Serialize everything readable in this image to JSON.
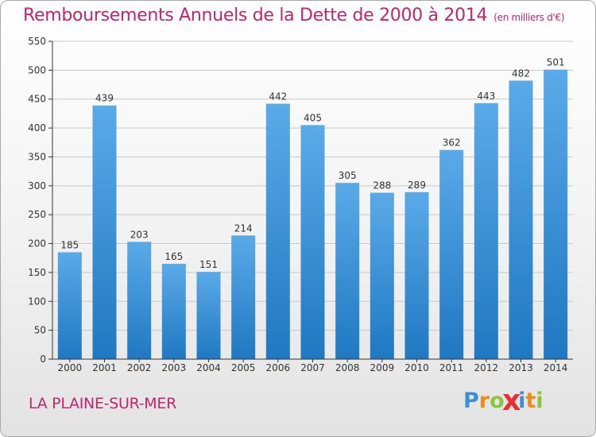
{
  "title": "Remboursements Annuels de la Dette de 2000 à 2014",
  "subtitle": "(en milliers d'€)",
  "location": "LA PLAINE-SUR-MER",
  "logo": {
    "text": "Proxiti",
    "letters": [
      {
        "char": "P",
        "color": "#3b8fd6"
      },
      {
        "char": "r",
        "color": "#ef8a1c"
      },
      {
        "char": "o",
        "color": "#8cc63f"
      },
      {
        "char": "x",
        "color": "#e8312f"
      },
      {
        "char": "i",
        "color": "#3b8fd6"
      },
      {
        "char": "t",
        "color": "#ef8a1c"
      },
      {
        "char": "i",
        "color": "#8cc63f"
      }
    ]
  },
  "colors": {
    "title": "#c0256e",
    "bar_light": "#5aaae8",
    "bar_dark": "#1f78c1",
    "grid": "#c8c8c8",
    "axis": "#333333",
    "label": "#333333"
  },
  "chart_data": {
    "type": "bar",
    "title": "Remboursements Annuels de la Dette de 2000 à 2014",
    "subtitle": "(en milliers d'€)",
    "xlabel": "",
    "ylabel": "",
    "categories": [
      "2000",
      "2001",
      "2002",
      "2003",
      "2004",
      "2005",
      "2006",
      "2007",
      "2008",
      "2009",
      "2010",
      "2011",
      "2012",
      "2013",
      "2014"
    ],
    "values": [
      185,
      439,
      203,
      165,
      151,
      214,
      442,
      405,
      305,
      288,
      289,
      362,
      443,
      482,
      501
    ],
    "ylim": [
      0,
      550
    ],
    "yticks": [
      0,
      50,
      100,
      150,
      200,
      250,
      300,
      350,
      400,
      450,
      500,
      550
    ],
    "grid": true,
    "data_labels": true
  }
}
